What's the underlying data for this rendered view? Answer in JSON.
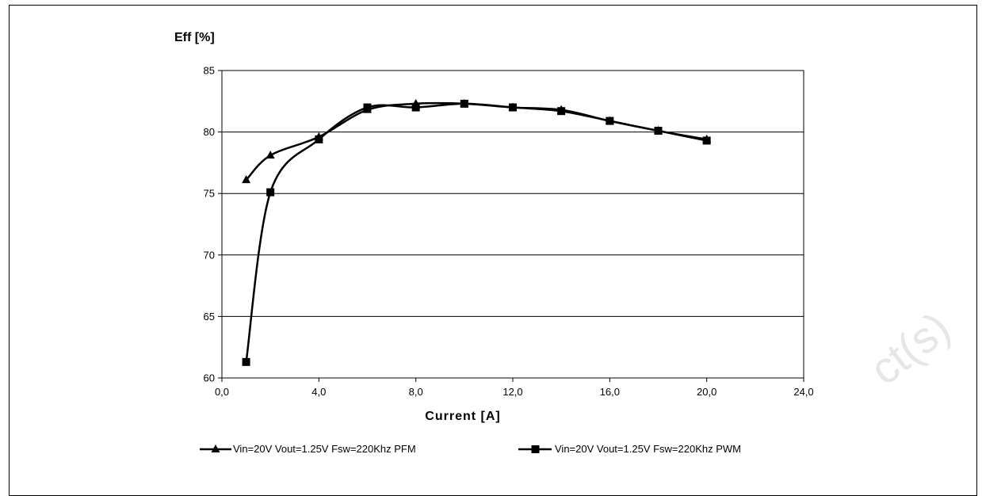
{
  "chart_data": {
    "type": "line",
    "ylabel": "Eff [%]",
    "xlabel": "Current [A]",
    "xlim": [
      0,
      24
    ],
    "ylim": [
      60,
      85
    ],
    "xticks": [
      0,
      4,
      8,
      12,
      16,
      20,
      24
    ],
    "xtick_labels": [
      "0,0",
      "4,0",
      "8,0",
      "12,0",
      "16,0",
      "20,0",
      "24,0"
    ],
    "yticks": [
      60,
      65,
      70,
      75,
      80,
      85
    ],
    "ytick_labels": [
      "60",
      "65",
      "70",
      "75",
      "80",
      "85"
    ],
    "grid": "horizontal",
    "legend_position": "bottom",
    "series": [
      {
        "name": "Vin=20V Vout=1.25V Fsw=220Khz PFM",
        "marker": "triangle",
        "x": [
          1,
          2,
          4,
          6,
          8,
          10,
          12,
          14,
          16,
          18,
          20
        ],
        "y": [
          76.1,
          78.1,
          79.6,
          81.8,
          82.3,
          82.3,
          82.0,
          81.8,
          80.9,
          80.1,
          79.4
        ]
      },
      {
        "name": "Vin=20V Vout=1.25V Fsw=220Khz PWM",
        "marker": "square",
        "x": [
          1,
          2,
          4,
          6,
          8,
          10,
          12,
          14,
          16,
          18,
          20
        ],
        "y": [
          61.3,
          75.1,
          79.4,
          82.0,
          82.0,
          82.3,
          82.0,
          81.7,
          80.9,
          80.1,
          79.3
        ]
      }
    ],
    "legend_labels": [
      "Vin=20V Vout=1.25V Fsw=220Khz PFM",
      "Vin=20V Vout=1.25V Fsw=220Khz PWM"
    ]
  },
  "watermark": "ct(s)",
  "colors": {
    "line": "#000000",
    "grid": "#000000",
    "watermark": "#e6e6e6"
  }
}
